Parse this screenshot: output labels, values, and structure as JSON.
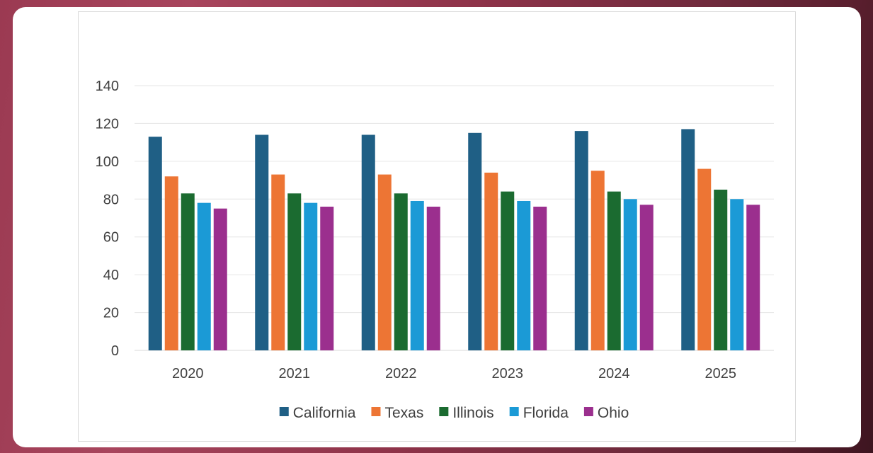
{
  "chart_data": {
    "type": "bar",
    "title": "",
    "xlabel": "",
    "ylabel": "",
    "ylim": [
      0,
      140
    ],
    "yticks": [
      0,
      20,
      40,
      60,
      80,
      100,
      120,
      140
    ],
    "grid": true,
    "legend_position": "bottom",
    "categories": [
      "2020",
      "2021",
      "2022",
      "2023",
      "2024",
      "2025"
    ],
    "series": [
      {
        "name": "California",
        "color": "#1f5f85",
        "values": [
          113,
          114,
          114,
          115,
          116,
          117
        ]
      },
      {
        "name": "Texas",
        "color": "#ed7534",
        "values": [
          92,
          93,
          93,
          94,
          95,
          96
        ]
      },
      {
        "name": "Illinois",
        "color": "#1b6b30",
        "values": [
          83,
          83,
          83,
          84,
          84,
          85
        ]
      },
      {
        "name": "Florida",
        "color": "#1b9ad6",
        "values": [
          78,
          78,
          79,
          79,
          80,
          80
        ]
      },
      {
        "name": "Ohio",
        "color": "#9b2f8e",
        "values": [
          75,
          76,
          76,
          76,
          77,
          77
        ]
      }
    ]
  }
}
